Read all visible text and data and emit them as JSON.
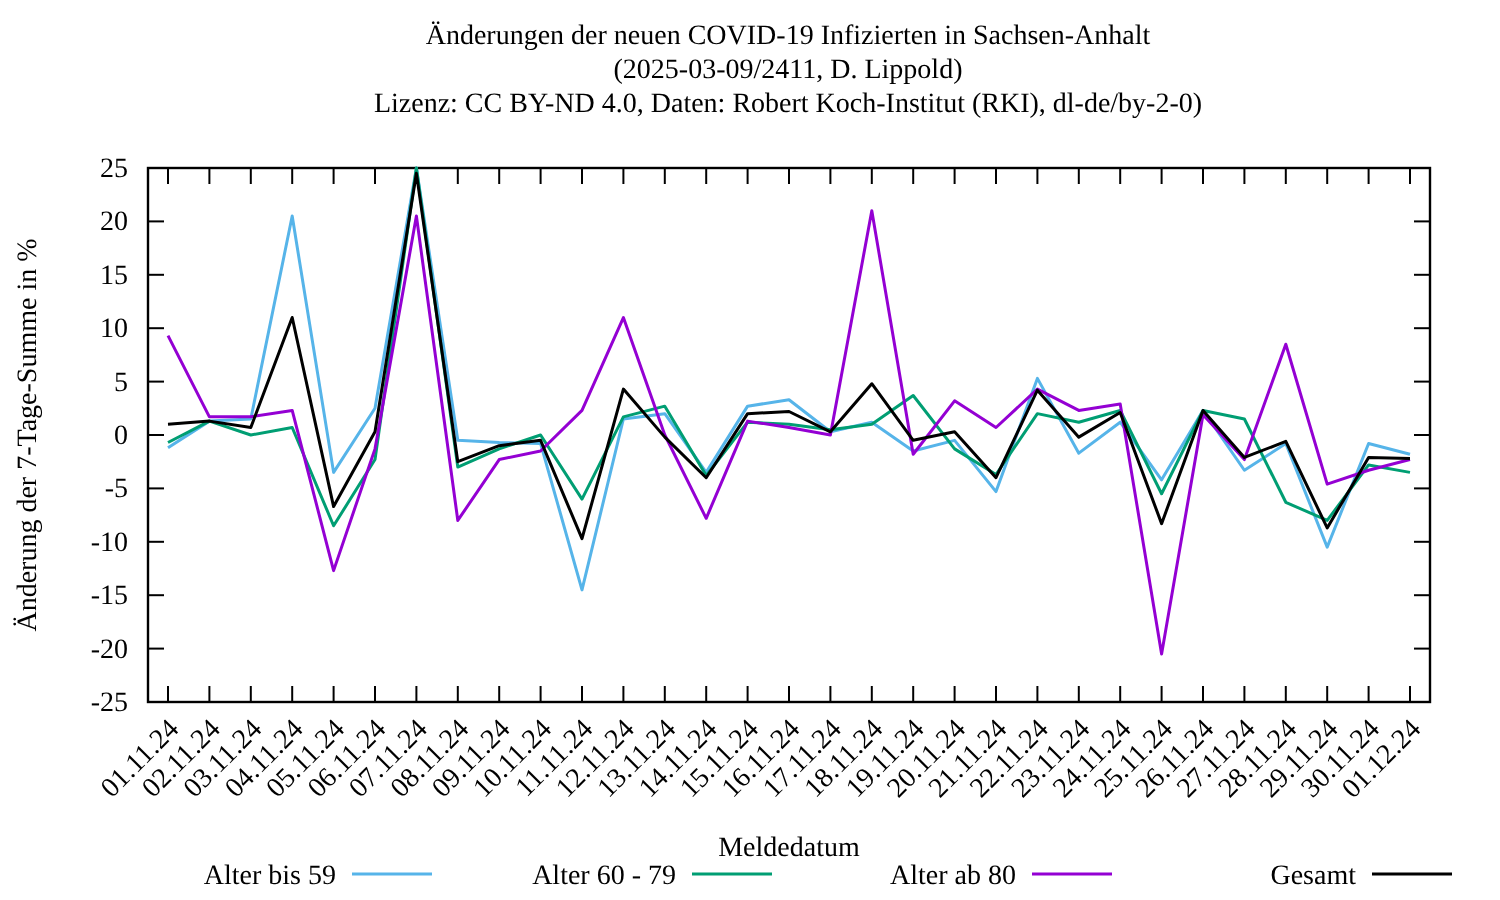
{
  "chart_data": {
    "type": "line",
    "title": "Änderungen der neuen COVID-19 Infizierten in Sachsen-Anhalt\n(2025-03-09/2411, D. Lippold)\nLizenz: CC BY-ND 4.0, Daten: Robert Koch-Institut (RKI), dl-de/by-2-0)",
    "xlabel": "Meldedatum",
    "ylabel": "Änderung der 7-Tage-Summe in %",
    "categories": [
      "01.11.24",
      "02.11.24",
      "03.11.24",
      "04.11.24",
      "05.11.24",
      "06.11.24",
      "07.11.24",
      "08.11.24",
      "09.11.24",
      "10.11.24",
      "11.11.24",
      "12.11.24",
      "13.11.24",
      "14.11.24",
      "15.11.24",
      "16.11.24",
      "17.11.24",
      "18.11.24",
      "19.11.24",
      "20.11.24",
      "21.11.24",
      "22.11.24",
      "23.11.24",
      "24.11.24",
      "25.11.24",
      "26.11.24",
      "27.11.24",
      "28.11.24",
      "29.11.24",
      "30.11.24",
      "01.12.24"
    ],
    "series": [
      {
        "name": "Alter bis 59",
        "color": "#56b4e9",
        "values": [
          -1.2,
          1.3,
          1.5,
          20.5,
          -3.5,
          2.5,
          25,
          -0.5,
          -0.7,
          -0.8,
          -14.5,
          1.5,
          2,
          -3.5,
          2.7,
          3.3,
          0.3,
          1.2,
          -1.5,
          -0.5,
          -5.3,
          5.3,
          -1.7,
          1.2,
          -4.2,
          2.3,
          -3.3,
          -0.8,
          -10.5,
          -0.8,
          -1.8
        ]
      },
      {
        "name": "Alter 60 - 79",
        "color": "#009e73",
        "values": [
          -0.7,
          1.3,
          0,
          0.7,
          -8.5,
          -2.3,
          25,
          -3,
          -1.3,
          0,
          -6,
          1.7,
          2.7,
          -3.8,
          1.2,
          1,
          0.5,
          1,
          3.7,
          -1.3,
          -3.7,
          2,
          1.2,
          2.3,
          -5.5,
          2.3,
          1.5,
          -6.3,
          -8,
          -2.8,
          -3.5
        ]
      },
      {
        "name": "Alter ab 80",
        "color": "#9400d3",
        "values": [
          9.3,
          1.7,
          1.7,
          2.3,
          -12.7,
          -1.3,
          20.5,
          -8,
          -2.3,
          -1.5,
          2.3,
          11,
          0,
          -7.8,
          1.3,
          0.7,
          0,
          21,
          -1.8,
          3.2,
          0.7,
          4.3,
          2.3,
          2.9,
          -20.5,
          1.9,
          -2.3,
          8.5,
          -4.6,
          -3.3,
          -2.3
        ]
      },
      {
        "name": "Gesamt",
        "color": "#000000",
        "values": [
          1,
          1.3,
          0.7,
          11,
          -6.7,
          0.3,
          24.5,
          -2.5,
          -1,
          -0.5,
          -9.7,
          4.3,
          -0.2,
          -4,
          2,
          2.2,
          0.3,
          4.8,
          -0.5,
          0.3,
          -4,
          4.2,
          -0.2,
          2.1,
          -8.3,
          2.3,
          -2.1,
          -0.6,
          -8.7,
          -2.1,
          -2.2
        ]
      }
    ],
    "ylim": [
      -25,
      25
    ],
    "yticks": [
      -25,
      -20,
      -15,
      -10,
      -5,
      0,
      5,
      10,
      15,
      20,
      25
    ],
    "grid": false,
    "legend": "bottom",
    "marker": "none",
    "line_style": "solid"
  }
}
